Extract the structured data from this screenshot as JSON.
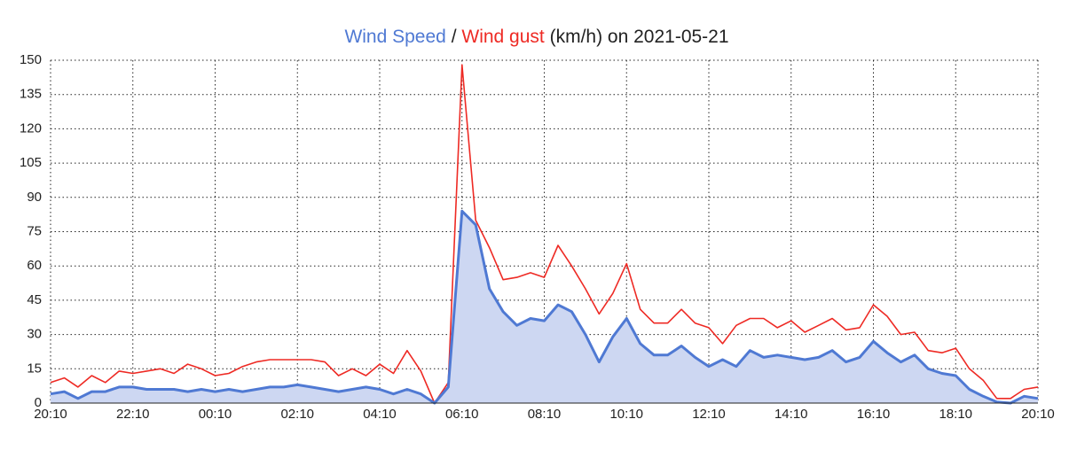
{
  "chart_data": {
    "type": "line",
    "title": {
      "separator": "/",
      "suffix": "(km/h) on 2021-05-21"
    },
    "categories": [
      "20:10",
      null,
      null,
      null,
      null,
      null,
      "22:10",
      null,
      null,
      null,
      null,
      null,
      "00:10",
      null,
      null,
      null,
      null,
      null,
      "02:10",
      null,
      null,
      null,
      null,
      null,
      "04:10",
      null,
      null,
      null,
      null,
      null,
      "06:10",
      null,
      null,
      null,
      null,
      null,
      "08:10",
      null,
      null,
      null,
      null,
      null,
      "10:10",
      null,
      null,
      null,
      null,
      null,
      "12:10",
      null,
      null,
      null,
      null,
      null,
      "14:10",
      null,
      null,
      null,
      null,
      null,
      "16:10",
      null,
      null,
      null,
      null,
      null,
      "18:10",
      null,
      null,
      null,
      null,
      null,
      "20:10"
    ],
    "series": [
      {
        "name": "Wind Speed",
        "color": "#4f79d3",
        "fill": "#cdd7f2",
        "area": true,
        "values": [
          4,
          5,
          2,
          5,
          5,
          7,
          7,
          6,
          6,
          6,
          5,
          6,
          5,
          6,
          5,
          6,
          7,
          7,
          8,
          7,
          6,
          5,
          6,
          7,
          6,
          4,
          6,
          4,
          0,
          7,
          84,
          78,
          50,
          40,
          34,
          37,
          36,
          43,
          40,
          30,
          18,
          29,
          37,
          26,
          21,
          21,
          25,
          20,
          16,
          19,
          16,
          23,
          20,
          21,
          20,
          19,
          20,
          23,
          18,
          20,
          27,
          22,
          18,
          21,
          15,
          13,
          12,
          6,
          3,
          0.5,
          0,
          3,
          2
        ]
      },
      {
        "name": "Wind gust",
        "color": "#ee2a24",
        "area": false,
        "values": [
          9,
          11,
          7,
          12,
          9,
          14,
          13,
          14,
          15,
          13,
          17,
          15,
          12,
          13,
          16,
          18,
          19,
          19,
          19,
          19,
          18,
          12,
          15,
          12,
          17,
          13,
          23,
          14,
          0,
          9,
          148,
          80,
          68,
          54,
          55,
          57,
          55,
          69,
          60,
          50,
          39,
          48,
          61,
          41,
          35,
          35,
          41,
          35,
          33,
          26,
          34,
          37,
          37,
          33,
          36,
          31,
          34,
          37,
          32,
          33,
          43,
          38,
          30,
          31,
          23,
          22,
          24,
          15,
          10,
          2,
          2,
          6,
          7
        ]
      }
    ],
    "ylim": [
      0,
      150
    ],
    "yticks": [
      0,
      15,
      30,
      45,
      60,
      75,
      90,
      105,
      120,
      135,
      150
    ],
    "grid": true
  }
}
